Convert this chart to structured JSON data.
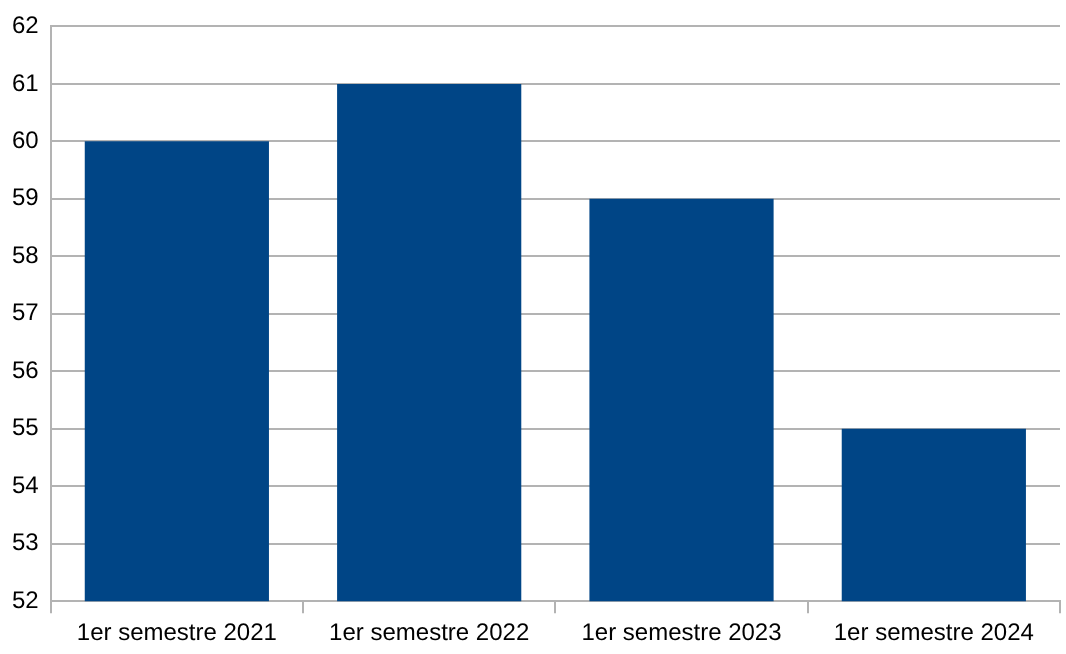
{
  "chart_data": {
    "type": "bar",
    "categories": [
      "1er semestre 2021",
      "1er semestre 2022",
      "1er semestre 2023",
      "1er semestre 2024"
    ],
    "values": [
      60,
      61,
      59,
      55
    ],
    "color": "#004586",
    "ylim": [
      52,
      62
    ],
    "yticks": [
      52,
      53,
      54,
      55,
      56,
      57,
      58,
      59,
      60,
      61,
      62
    ],
    "grid": "y",
    "legend": false
  }
}
